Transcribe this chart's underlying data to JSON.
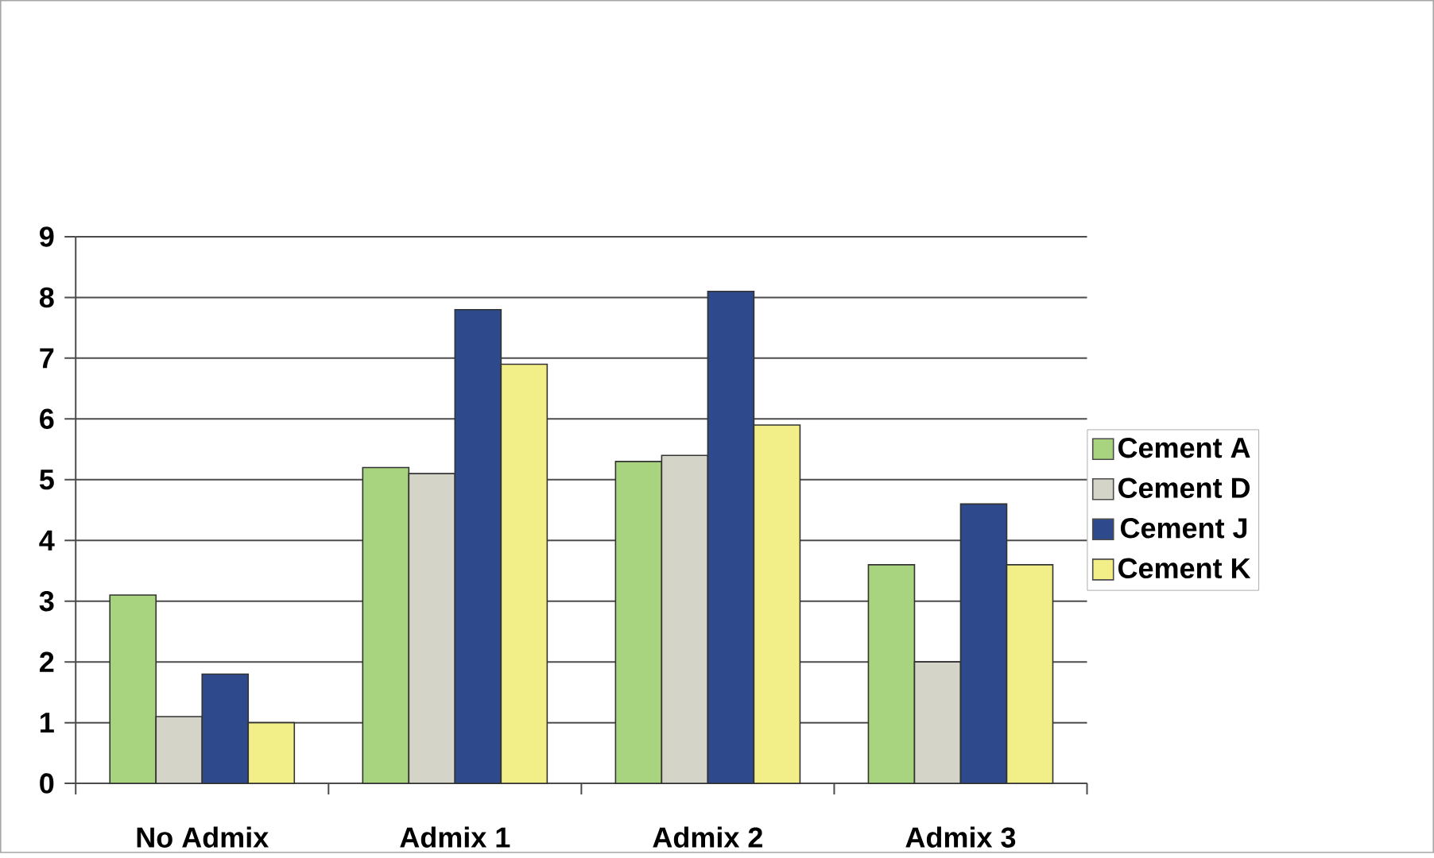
{
  "chart_data": {
    "type": "bar",
    "categories": [
      "No Admix",
      "Admix 1",
      "Admix 2",
      "Admix 3"
    ],
    "series": [
      {
        "name": "Cement A",
        "color": "#a9d47f",
        "values": [
          3.1,
          5.2,
          5.3,
          3.6
        ]
      },
      {
        "name": "Cement D",
        "color": "#d4d4c8",
        "values": [
          1.1,
          5.1,
          5.4,
          2.0
        ]
      },
      {
        "name": "Cement J",
        "color": "#2e4a8c",
        "values": [
          1.8,
          7.8,
          8.1,
          4.6
        ]
      },
      {
        "name": "Cement K",
        "color": "#f2ef88",
        "values": [
          1.0,
          6.9,
          5.9,
          3.6
        ]
      }
    ],
    "ylim": [
      0,
      9
    ],
    "yticks": [
      0,
      1,
      2,
      3,
      4,
      5,
      6,
      7,
      8,
      9
    ],
    "grid": "y",
    "legend": "right"
  }
}
